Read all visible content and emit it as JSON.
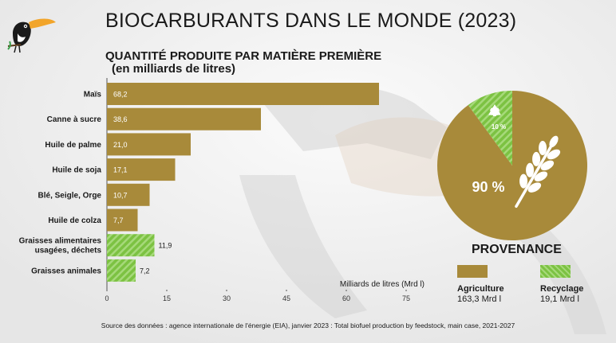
{
  "title": "BIOCARBURANTS DANS LE MONDE (2023)",
  "subtitle_line1": "QUANTITÉ PRODUITE PAR MATIÈRE PREMIÈRE",
  "subtitle_line2": "(en milliards de litres)",
  "colors": {
    "agriculture": "#a88a3a",
    "recycling": "#7cc242"
  },
  "icons": {
    "logo": "toucan-icon",
    "recycle": "recycle-icon",
    "wheat": "wheat-icon"
  },
  "chart_data": [
    {
      "type": "bar",
      "orientation": "horizontal",
      "categories": [
        "Maïs",
        "Canne à sucre",
        "Huile de palme",
        "Huile de soja",
        "Blé, Seigle, Orge",
        "Huile de colza",
        "Graisses alimentaires\nusagées, déchets",
        "Graisses animales"
      ],
      "values": [
        68.2,
        38.6,
        21.0,
        17.1,
        10.7,
        7.7,
        11.9,
        7.2
      ],
      "value_labels": [
        "68,2",
        "38,6",
        "21,0",
        "17,1",
        "10,7",
        "7,7",
        "11,9",
        "7,2"
      ],
      "groups": [
        "agriculture",
        "agriculture",
        "agriculture",
        "agriculture",
        "agriculture",
        "agriculture",
        "recycling",
        "recycling"
      ],
      "xlabel": "Milliards de litres (Mrd l)",
      "xticks": [
        0,
        15,
        30,
        45,
        60,
        75
      ],
      "xlim": [
        0,
        75
      ]
    },
    {
      "type": "pie",
      "labels": [
        "Agriculture",
        "Recyclage"
      ],
      "values": [
        90,
        10
      ],
      "value_labels": [
        "90 %",
        "10 %"
      ],
      "groups": [
        "agriculture",
        "recycling"
      ]
    }
  ],
  "legend": {
    "title": "PROVENANCE",
    "items": [
      {
        "name": "Agriculture",
        "value": "163,3 Mrd l"
      },
      {
        "name": "Recyclage",
        "value": "19,1 Mrd l"
      }
    ]
  },
  "source": "Source des données : agence internationale de l'énergie (EIA), janvier 2023 : Total biofuel production by feedstock, main case, 2021-2027"
}
